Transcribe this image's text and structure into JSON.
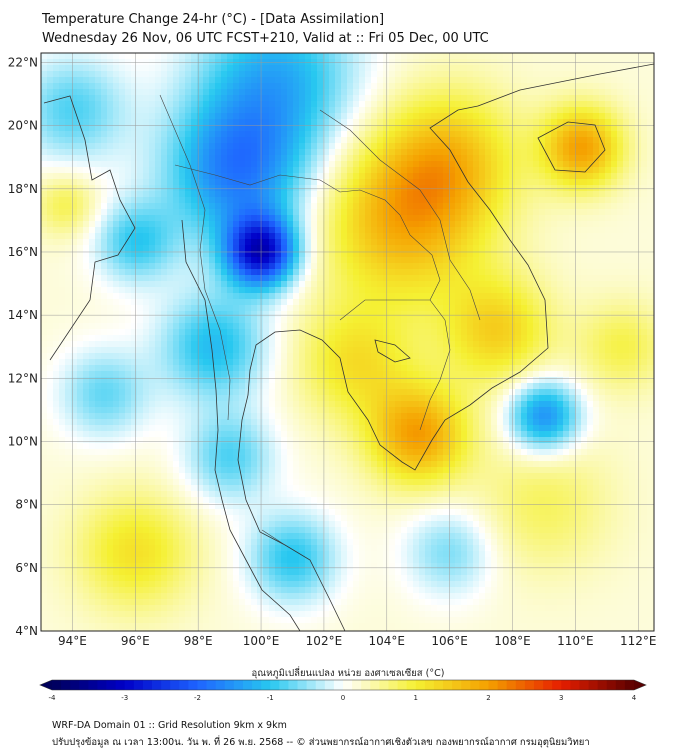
{
  "title": {
    "line1": "Temperature Change 24-hr (°C) - [Data Assimilation]",
    "line2": "Wednesday 26 Nov, 06 UTC FCST+210, Valid at :: Fri 05 Dec, 00 UTC"
  },
  "map": {
    "lon_range": [
      93,
      112.5
    ],
    "lat_range": [
      4,
      22.3
    ],
    "lat_ticks": [
      {
        "value": 22,
        "label": "22°N"
      },
      {
        "value": 20,
        "label": "20°N"
      },
      {
        "value": 18,
        "label": "18°N"
      },
      {
        "value": 16,
        "label": "16°N"
      },
      {
        "value": 14,
        "label": "14°N"
      },
      {
        "value": 12,
        "label": "12°N"
      },
      {
        "value": 10,
        "label": "10°N"
      },
      {
        "value": 8,
        "label": "8°N"
      },
      {
        "value": 6,
        "label": "6°N"
      },
      {
        "value": 4,
        "label": "4°N"
      }
    ],
    "lon_ticks": [
      {
        "value": 94,
        "label": "94°E"
      },
      {
        "value": 96,
        "label": "96°E"
      },
      {
        "value": 98,
        "label": "98°E"
      },
      {
        "value": 100,
        "label": "100°E"
      },
      {
        "value": 102,
        "label": "102°E"
      },
      {
        "value": 104,
        "label": "104°E"
      },
      {
        "value": 106,
        "label": "106°E"
      },
      {
        "value": 108,
        "label": "108°E"
      },
      {
        "value": 110,
        "label": "110°E"
      },
      {
        "value": 112,
        "label": "112°E"
      }
    ],
    "field_anomalies": [
      {
        "lon": 100.0,
        "lat": 16.0,
        "dT": -3.0,
        "spread": 0.8
      },
      {
        "lon": 99.2,
        "lat": 18.5,
        "dT": -1.8,
        "spread": 1.6
      },
      {
        "lon": 100.5,
        "lat": 21.5,
        "dT": -1.4,
        "spread": 1.8
      },
      {
        "lon": 98.5,
        "lat": 13.0,
        "dT": -1.3,
        "spread": 1.2
      },
      {
        "lon": 99.0,
        "lat": 9.5,
        "dT": -1.0,
        "spread": 1.0
      },
      {
        "lon": 101.0,
        "lat": 6.3,
        "dT": -1.2,
        "spread": 1.0
      },
      {
        "lon": 94.0,
        "lat": 20.5,
        "dT": -1.0,
        "spread": 1.2
      },
      {
        "lon": 96.0,
        "lat": 16.3,
        "dT": -1.1,
        "spread": 0.9
      },
      {
        "lon": 95.0,
        "lat": 11.5,
        "dT": -0.9,
        "spread": 1.0
      },
      {
        "lon": 109.0,
        "lat": 10.8,
        "dT": -1.8,
        "spread": 0.8
      },
      {
        "lon": 106.0,
        "lat": 6.5,
        "dT": -0.8,
        "spread": 1.0
      },
      {
        "lon": 104.5,
        "lat": 17.0,
        "dT": 1.6,
        "spread": 1.8
      },
      {
        "lon": 106.0,
        "lat": 19.0,
        "dT": 1.2,
        "spread": 1.5
      },
      {
        "lon": 105.0,
        "lat": 10.2,
        "dT": 1.8,
        "spread": 1.1
      },
      {
        "lon": 103.0,
        "lat": 12.5,
        "dT": 1.0,
        "spread": 1.3
      },
      {
        "lon": 110.2,
        "lat": 19.3,
        "dT": 1.8,
        "spread": 0.9
      },
      {
        "lon": 107.5,
        "lat": 13.5,
        "dT": 1.2,
        "spread": 1.2
      },
      {
        "lon": 96.0,
        "lat": 6.5,
        "dT": 1.0,
        "spread": 1.3
      },
      {
        "lon": 93.8,
        "lat": 17.5,
        "dT": 0.7,
        "spread": 0.7
      },
      {
        "lon": 109.0,
        "lat": 8.0,
        "dT": 0.6,
        "spread": 1.5
      },
      {
        "lon": 111.5,
        "lat": 13.0,
        "dT": 0.7,
        "spread": 1.0
      }
    ]
  },
  "colorbar": {
    "label": "อุณหภูมิเปลี่ยนแปลง หน่วย องศาเซลเซียส (°C)",
    "min": -4,
    "max": 4,
    "ticks": [
      "-4",
      "-3",
      "-2",
      "-1",
      "0",
      "1",
      "2",
      "3",
      "4"
    ],
    "colors": [
      "#00005a",
      "#0000c8",
      "#1e64ff",
      "#28c8f0",
      "#ffffff",
      "#f5f032",
      "#f5a000",
      "#e61e00",
      "#5a0000"
    ]
  },
  "footer": {
    "line1": "WRF-DA Domain 01 :: Grid Resolution 9km x 9km",
    "line2": "ปรับปรุงข้อมูล ณ เวลา 13:00น. วัน พ. ที่ 26 พ.ย. 2568 -- © ส่วนพยากรณ์อากาศเชิงตัวเลข กองพยากรณ์อากาศ กรมอุตุนิยมวิทยา"
  }
}
